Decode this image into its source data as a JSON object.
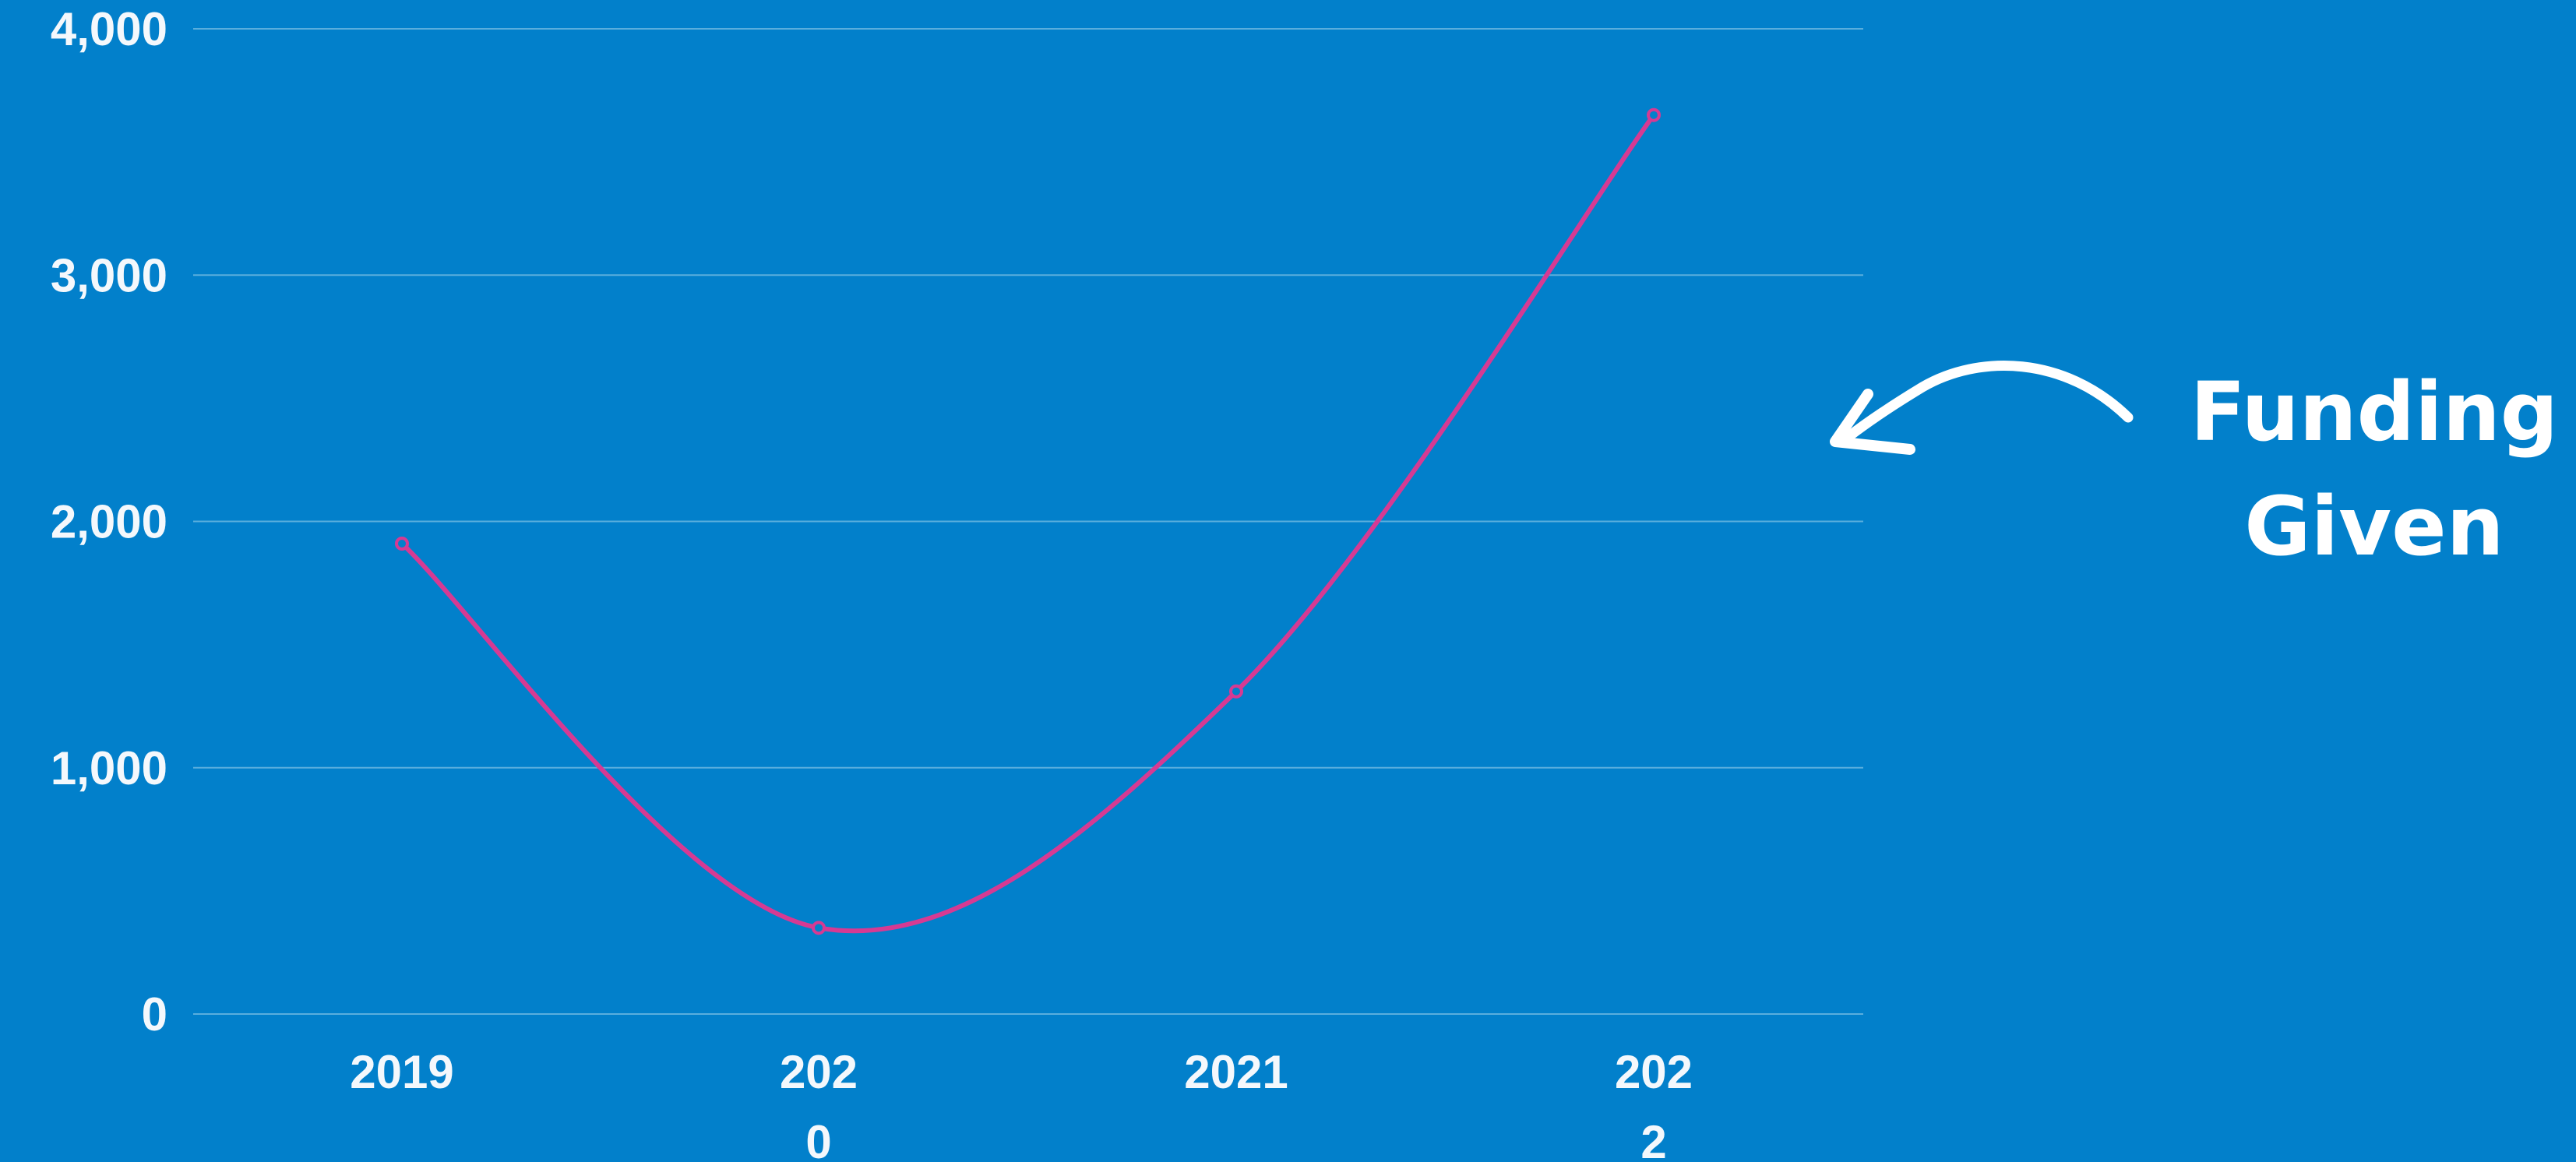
{
  "chart_data": {
    "type": "line",
    "categories": [
      "2019",
      "2020",
      "2021",
      "2022"
    ],
    "x_tick_labels": [
      [
        "2019"
      ],
      [
        "202",
        "0"
      ],
      [
        "2021"
      ],
      [
        "202",
        "2"
      ]
    ],
    "series": [
      {
        "values": [
          1910,
          350,
          1310,
          3650
        ]
      }
    ],
    "y_ticks": [
      "0",
      "1,000",
      "2,000",
      "3,000",
      "4,000"
    ],
    "ylim": [
      0,
      4000
    ],
    "smooth": true,
    "markers": "hollow-circle",
    "grid": true,
    "legend": "none",
    "title": "",
    "xlabel": "",
    "ylabel": ""
  },
  "callout": {
    "lines": [
      "Funding",
      "Given"
    ],
    "icon": "curved-arrow-left-icon"
  },
  "colors": {
    "background": "#0280CB",
    "line": "#D63A93",
    "grid": "#5AAEDD",
    "text": "#F4F8FC"
  }
}
